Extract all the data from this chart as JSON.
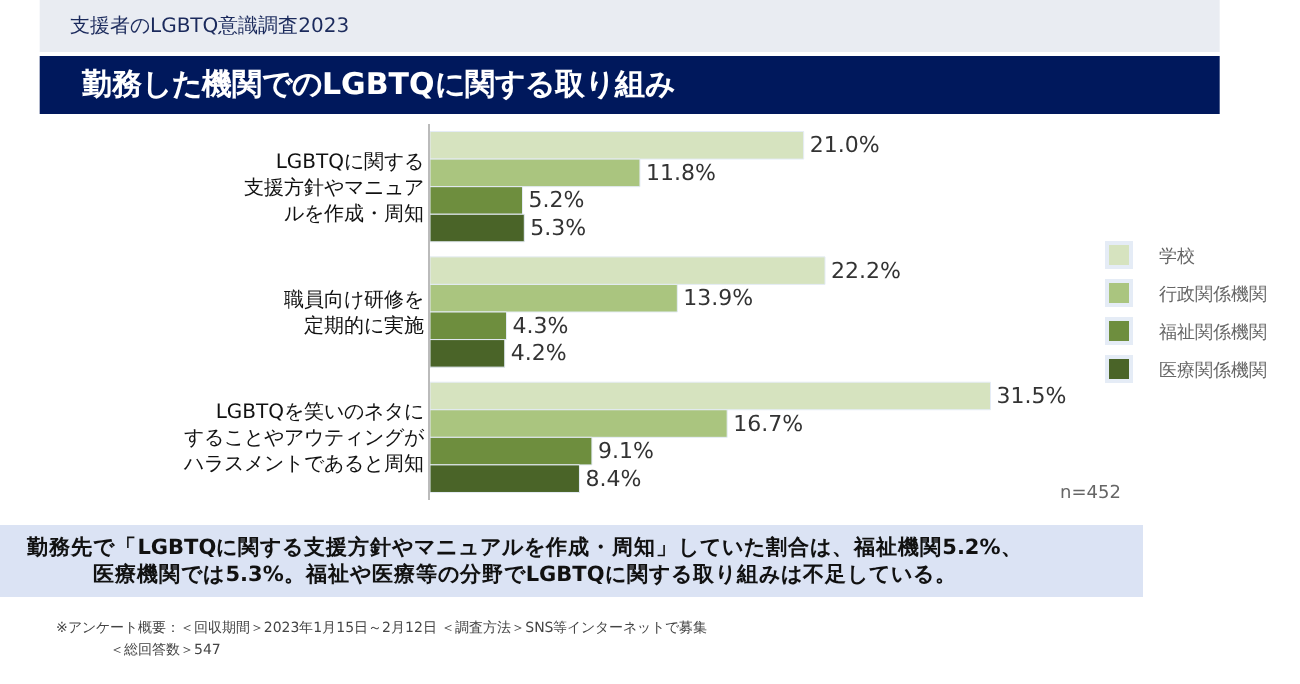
{
  "chart_data": {
    "type": "bar",
    "orientation": "horizontal",
    "subtitle": "支援者のLGBTQ意識調査2023",
    "title": "勤務した機関でのLGBTQに関する取り組み",
    "categories": [
      "LGBTQに関する支援方針やマニュアルを作成・周知",
      "職員向け研修を定期的に実施",
      "LGBTQを笑いのネタにすることやアウティングがハラスメントであると周知"
    ],
    "series": [
      {
        "name": "学校",
        "color": "#d6e3bf",
        "values": [
          21.0,
          22.2,
          31.5
        ],
        "value_labels": [
          "21.0%",
          "22.2%",
          "31.5%"
        ]
      },
      {
        "name": "行政関係機関",
        "color": "#aac57f",
        "values": [
          11.8,
          13.9,
          16.7
        ],
        "value_labels": [
          "11.8%",
          "13.9%",
          "16.7%"
        ]
      },
      {
        "name": "福祉関係機関",
        "color": "#6e8e3e",
        "values": [
          5.2,
          4.3,
          9.1
        ],
        "value_labels": [
          "5.2%",
          "4.3%",
          "9.1%"
        ]
      },
      {
        "name": "医療関係機関",
        "color": "#4a6428",
        "values": [
          5.3,
          4.2,
          8.4
        ],
        "value_labels": [
          "5.3%",
          "4.2%",
          "8.4%"
        ]
      }
    ],
    "tick_labels": "y",
    "legend": "right",
    "annotations": [
      "n=452",
      "勤務先で「LGBTQに関する支援方針やマニュアルを作成・周知」していた割合は、福祉機関5.2%、医療機関では5.3%。福祉や医療等の分野でLGBTQに関する取り組みは不足している。",
      "※アンケート概要：＜回収期間＞2023年1月15日～2月12日 ＜調査方法＞SNS等インターネットで募集",
      "＜総回答数＞547"
    ]
  }
}
